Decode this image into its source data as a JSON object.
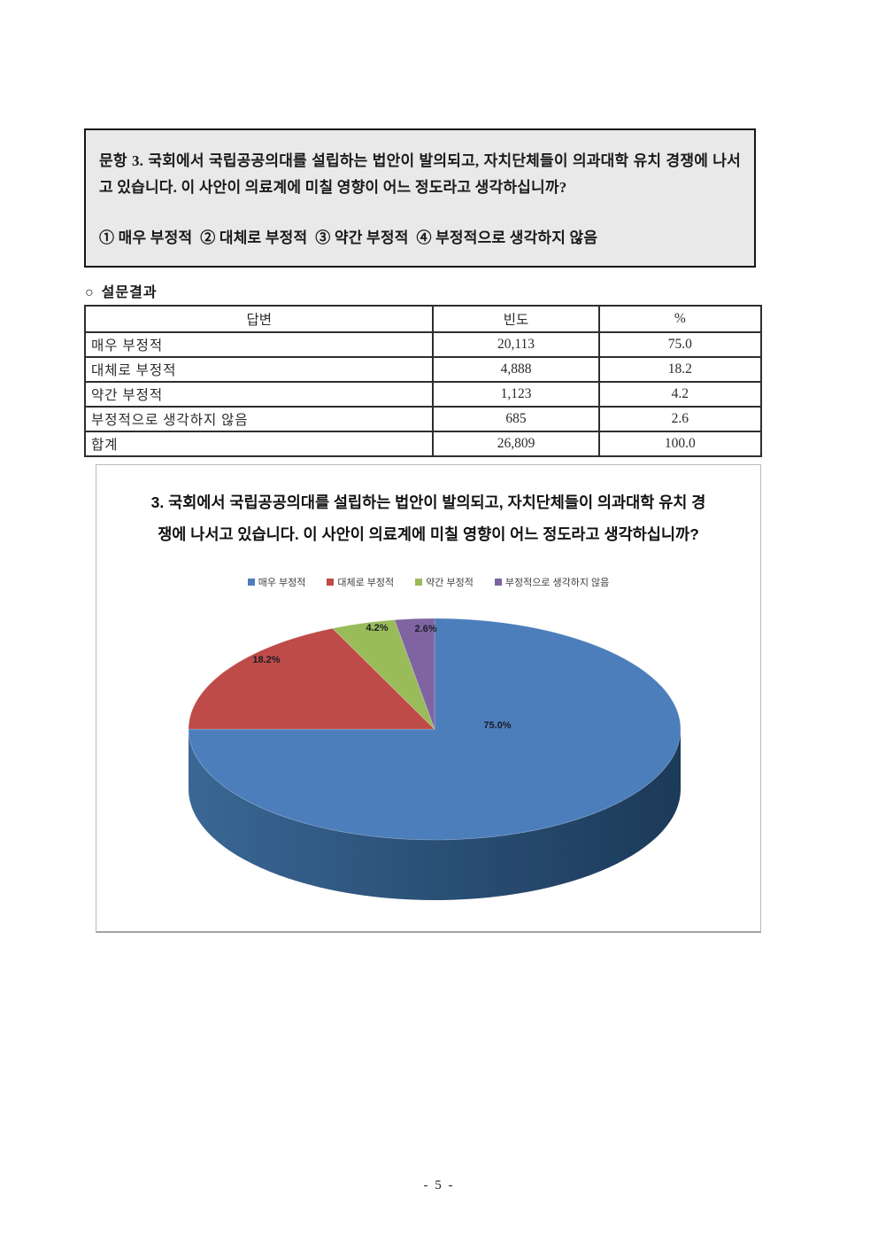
{
  "question_box": {
    "question": "문항 3. 국회에서 국립공공의대를 설립하는 법안이 발의되고, 자치단체들이 의과대학 유치 경쟁에 나서고 있습니다. 이 사안이 의료계에 미칠 영향이 어느 정도라고 생각하십니까?",
    "options": "① 매우 부정적  ② 대체로 부정적  ③ 약간 부정적  ④ 부정적으로 생각하지 않음"
  },
  "section": {
    "marker": "○",
    "title": "설문결과"
  },
  "table": {
    "headers": [
      "답변",
      "빈도",
      "%"
    ],
    "rows": [
      [
        "매우 부정적",
        "20,113",
        "75.0"
      ],
      [
        "대체로 부정적",
        "4,888",
        "18.2"
      ],
      [
        "약간 부정적",
        "1,123",
        "4.2"
      ],
      [
        "부정적으로 생각하지 않음",
        "685",
        "2.6"
      ],
      [
        "합계",
        "26,809",
        "100.0"
      ]
    ]
  },
  "chart_data": {
    "type": "pie",
    "style": "3d",
    "title": "3. 국회에서 국립공공의대를 설립하는 법안이 발의되고, 자치단체들이 의과대학 유치 경쟁에 나서고 있습니다. 이 사안이 의료계에 미칠 영향이 어느 정도라고 생각하십니까?",
    "categories": [
      "매우 부정적",
      "대체로 부정적",
      "약간 부정적",
      "부정적으로 생각하지 않음"
    ],
    "values": [
      75.0,
      18.2,
      4.2,
      2.6
    ],
    "labels": [
      "75.0%",
      "18.2%",
      "4.2%",
      "2.6%"
    ],
    "colors": [
      "#4c7ebb",
      "#be4b48",
      "#9abb59",
      "#8064a2"
    ],
    "side_gradient": [
      "#3a6795",
      "#2a5076",
      "#1c3a59"
    ],
    "legend_position": "top",
    "start_angle_deg": 0,
    "direction": "clockwise"
  },
  "page": {
    "number_label": "- 5 -"
  }
}
